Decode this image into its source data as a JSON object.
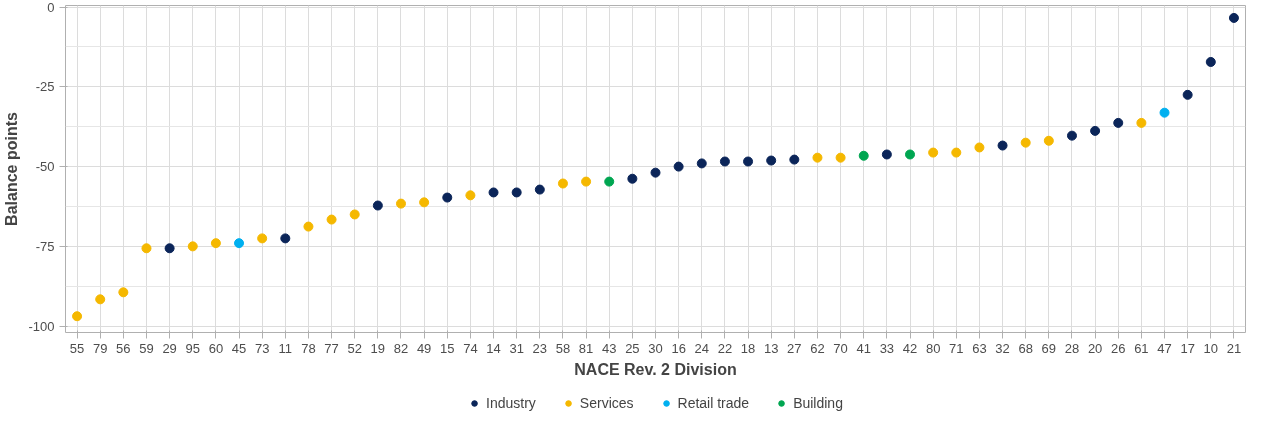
{
  "chart_data": {
    "type": "scatter",
    "xlabel": "NACE Rev. 2 Division",
    "ylabel": "Balance points",
    "categories": [
      "55",
      "79",
      "56",
      "59",
      "29",
      "95",
      "60",
      "45",
      "73",
      "11",
      "78",
      "77",
      "52",
      "19",
      "82",
      "49",
      "15",
      "74",
      "14",
      "31",
      "23",
      "58",
      "81",
      "43",
      "25",
      "30",
      "16",
      "24",
      "22",
      "18",
      "13",
      "27",
      "62",
      "70",
      "41",
      "33",
      "42",
      "80",
      "71",
      "63",
      "32",
      "68",
      "69",
      "28",
      "20",
      "26",
      "61",
      "47",
      "17",
      "10",
      "21"
    ],
    "series": [
      {
        "name": "Industry",
        "color": "#0b2559",
        "values": [
          null,
          null,
          null,
          null,
          -75.6,
          null,
          null,
          null,
          null,
          -72.5,
          null,
          null,
          null,
          -62.2,
          null,
          null,
          -59.7,
          null,
          -58.1,
          -58.1,
          -57.2,
          null,
          null,
          null,
          -53.8,
          -51.9,
          -50,
          -49,
          -48.4,
          -48.4,
          -48.1,
          -47.8,
          null,
          null,
          null,
          -46.2,
          null,
          null,
          null,
          null,
          -43.4,
          null,
          null,
          -40.3,
          -38.8,
          -36.3,
          null,
          null,
          -27.5,
          -17.2,
          -3.4
        ]
      },
      {
        "name": "Services",
        "color": "#f5b800",
        "values": [
          -96.9,
          -91.6,
          -89.4,
          -75.6,
          null,
          -75,
          -74,
          null,
          -72.5,
          null,
          -68.8,
          -66.6,
          -65,
          null,
          -61.6,
          -61.2,
          null,
          -59,
          null,
          null,
          null,
          -55.3,
          -54.7,
          null,
          null,
          null,
          null,
          null,
          null,
          null,
          null,
          null,
          -47.2,
          -47.2,
          null,
          null,
          null,
          -45.6,
          -45.6,
          -44,
          null,
          -42.5,
          -41.9,
          null,
          null,
          null,
          -36.3,
          null,
          null,
          null,
          null
        ]
      },
      {
        "name": "Retail trade",
        "color": "#00b0f0",
        "values": [
          null,
          null,
          null,
          null,
          null,
          null,
          null,
          -74,
          null,
          null,
          null,
          null,
          null,
          null,
          null,
          null,
          null,
          null,
          null,
          null,
          null,
          null,
          null,
          null,
          null,
          null,
          null,
          null,
          null,
          null,
          null,
          null,
          null,
          null,
          null,
          null,
          null,
          null,
          null,
          null,
          null,
          null,
          null,
          null,
          null,
          null,
          null,
          -33.1,
          null,
          null,
          null
        ]
      },
      {
        "name": "Building",
        "color": "#00a651",
        "values": [
          null,
          null,
          null,
          null,
          null,
          null,
          null,
          null,
          null,
          null,
          null,
          null,
          null,
          null,
          null,
          null,
          null,
          null,
          null,
          null,
          null,
          null,
          null,
          -54.7,
          null,
          null,
          null,
          null,
          null,
          null,
          null,
          null,
          null,
          null,
          -46.6,
          null,
          -46.2,
          null,
          null,
          null,
          null,
          null,
          null,
          null,
          null,
          null,
          null,
          null,
          null,
          null,
          null
        ]
      }
    ],
    "ylim": [
      -102,
      0.5
    ],
    "yticks": [
      0,
      -25,
      -50,
      -75,
      -100
    ],
    "grid": true,
    "legend": "bottom",
    "marker": "circle"
  }
}
